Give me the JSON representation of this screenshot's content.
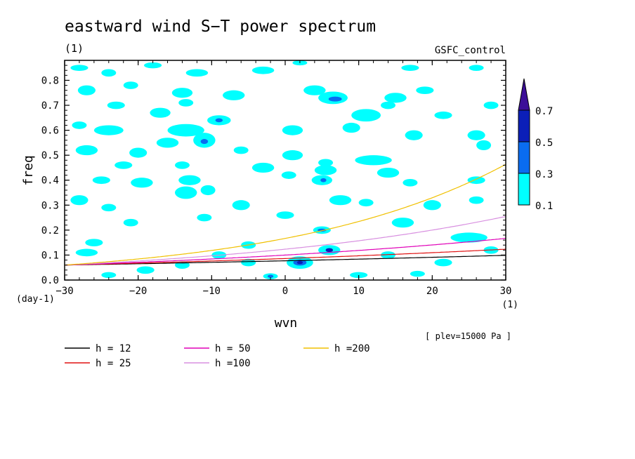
{
  "chart_data": {
    "type": "heatmap",
    "title": "eastward wind S−T power spectrum",
    "subtitle_left": "(1)",
    "subtitle_right": "GSFC_control",
    "xlabel": "wvn",
    "ylabel": "freq",
    "x_unit": "(1)",
    "y_unit": "(day-1)",
    "xlim": [
      -30,
      30
    ],
    "ylim": [
      0,
      0.88
    ],
    "x_ticks": [
      -30,
      -20,
      -10,
      0,
      10,
      20,
      30
    ],
    "x_tick_labels": [
      "−30",
      "−20",
      "−10",
      "0",
      "10",
      "20",
      "30"
    ],
    "y_ticks": [
      0.0,
      0.1,
      0.2,
      0.3,
      0.4,
      0.5,
      0.6,
      0.7,
      0.8
    ],
    "y_tick_labels": [
      "0.0",
      "0.1",
      "0.2",
      "0.3",
      "0.4",
      "0.5",
      "0.6",
      "0.7",
      "0.8"
    ],
    "note": "[ plev=15000 Pa ]",
    "colorbar": {
      "levels": [
        "0.1",
        "0.3",
        "0.5",
        "0.7"
      ],
      "colors": [
        "#00ffff",
        "#0a6cf0",
        "#0b1fb8",
        "#3c0f98"
      ]
    },
    "dispersion_curves": [
      {
        "name": "h = 12",
        "h": 12,
        "color": "#000000"
      },
      {
        "name": "h = 25",
        "h": 25,
        "color": "#e01010"
      },
      {
        "name": "h = 50",
        "h": 50,
        "color": "#e000b8"
      },
      {
        "name": "h =100",
        "h": 100,
        "color": "#d890e0"
      },
      {
        "name": "h =200",
        "h": 200,
        "color": "#f0c000"
      }
    ],
    "blobs": [
      {
        "x": -28,
        "y": 0.85,
        "rx": 1.2,
        "ry": 0.012,
        "level": 0
      },
      {
        "x": -24,
        "y": 0.83,
        "rx": 1.0,
        "ry": 0.015,
        "level": 0
      },
      {
        "x": -18,
        "y": 0.86,
        "rx": 1.2,
        "ry": 0.012,
        "level": 0
      },
      {
        "x": -12,
        "y": 0.83,
        "rx": 1.5,
        "ry": 0.015,
        "level": 0
      },
      {
        "x": -3,
        "y": 0.84,
        "rx": 1.5,
        "ry": 0.015,
        "level": 0
      },
      {
        "x": 2,
        "y": 0.87,
        "rx": 1.0,
        "ry": 0.01,
        "level": 0
      },
      {
        "x": 17,
        "y": 0.85,
        "rx": 1.2,
        "ry": 0.012,
        "level": 0
      },
      {
        "x": 26,
        "y": 0.85,
        "rx": 1.0,
        "ry": 0.012,
        "level": 0
      },
      {
        "x": -27,
        "y": 0.76,
        "rx": 1.2,
        "ry": 0.02,
        "level": 0
      },
      {
        "x": -21,
        "y": 0.78,
        "rx": 1.0,
        "ry": 0.015,
        "level": 0
      },
      {
        "x": -14,
        "y": 0.75,
        "rx": 1.4,
        "ry": 0.02,
        "level": 0
      },
      {
        "x": -7,
        "y": 0.74,
        "rx": 1.5,
        "ry": 0.02,
        "level": 0
      },
      {
        "x": 4,
        "y": 0.76,
        "rx": 1.5,
        "ry": 0.02,
        "level": 0
      },
      {
        "x": 6.5,
        "y": 0.73,
        "rx": 2.0,
        "ry": 0.025,
        "level": 0
      },
      {
        "x": 6.8,
        "y": 0.725,
        "rx": 0.9,
        "ry": 0.01,
        "level": 1
      },
      {
        "x": 15,
        "y": 0.73,
        "rx": 1.5,
        "ry": 0.02,
        "level": 0
      },
      {
        "x": 19,
        "y": 0.76,
        "rx": 1.2,
        "ry": 0.015,
        "level": 0
      },
      {
        "x": -23,
        "y": 0.7,
        "rx": 1.2,
        "ry": 0.015,
        "level": 0
      },
      {
        "x": -13.5,
        "y": 0.71,
        "rx": 1.0,
        "ry": 0.015,
        "level": 0
      },
      {
        "x": -17,
        "y": 0.67,
        "rx": 1.4,
        "ry": 0.02,
        "level": 0
      },
      {
        "x": -9,
        "y": 0.64,
        "rx": 1.6,
        "ry": 0.02,
        "level": 0
      },
      {
        "x": -9,
        "y": 0.64,
        "rx": 0.5,
        "ry": 0.008,
        "level": 1
      },
      {
        "x": 11,
        "y": 0.66,
        "rx": 2.0,
        "ry": 0.025,
        "level": 0
      },
      {
        "x": 14,
        "y": 0.7,
        "rx": 1.0,
        "ry": 0.015,
        "level": 0
      },
      {
        "x": 21.5,
        "y": 0.66,
        "rx": 1.2,
        "ry": 0.015,
        "level": 0
      },
      {
        "x": -28,
        "y": 0.62,
        "rx": 1.0,
        "ry": 0.015,
        "level": 0
      },
      {
        "x": -24,
        "y": 0.6,
        "rx": 2.0,
        "ry": 0.02,
        "level": 0
      },
      {
        "x": -13.5,
        "y": 0.6,
        "rx": 2.5,
        "ry": 0.025,
        "level": 0
      },
      {
        "x": -16,
        "y": 0.55,
        "rx": 1.5,
        "ry": 0.02,
        "level": 0
      },
      {
        "x": -11,
        "y": 0.56,
        "rx": 1.5,
        "ry": 0.03,
        "level": 0
      },
      {
        "x": -11,
        "y": 0.555,
        "rx": 0.5,
        "ry": 0.01,
        "level": 1
      },
      {
        "x": 1,
        "y": 0.6,
        "rx": 1.4,
        "ry": 0.02,
        "level": 0
      },
      {
        "x": 9,
        "y": 0.61,
        "rx": 1.2,
        "ry": 0.02,
        "level": 0
      },
      {
        "x": 17.5,
        "y": 0.58,
        "rx": 1.2,
        "ry": 0.02,
        "level": 0
      },
      {
        "x": 26,
        "y": 0.58,
        "rx": 1.2,
        "ry": 0.02,
        "level": 0
      },
      {
        "x": -27,
        "y": 0.52,
        "rx": 1.5,
        "ry": 0.02,
        "level": 0
      },
      {
        "x": -20,
        "y": 0.51,
        "rx": 1.2,
        "ry": 0.02,
        "level": 0
      },
      {
        "x": -6,
        "y": 0.52,
        "rx": 1.0,
        "ry": 0.015,
        "level": 0
      },
      {
        "x": 1,
        "y": 0.5,
        "rx": 1.4,
        "ry": 0.02,
        "level": 0
      },
      {
        "x": 12,
        "y": 0.48,
        "rx": 2.5,
        "ry": 0.02,
        "level": 0
      },
      {
        "x": 27,
        "y": 0.54,
        "rx": 1.0,
        "ry": 0.02,
        "level": 0
      },
      {
        "x": -22,
        "y": 0.46,
        "rx": 1.2,
        "ry": 0.015,
        "level": 0
      },
      {
        "x": -14,
        "y": 0.46,
        "rx": 1.0,
        "ry": 0.015,
        "level": 0
      },
      {
        "x": -3,
        "y": 0.45,
        "rx": 1.5,
        "ry": 0.02,
        "level": 0
      },
      {
        "x": 5.5,
        "y": 0.47,
        "rx": 1.0,
        "ry": 0.015,
        "level": 0
      },
      {
        "x": 5.5,
        "y": 0.44,
        "rx": 1.5,
        "ry": 0.02,
        "level": 0
      },
      {
        "x": 14,
        "y": 0.43,
        "rx": 1.5,
        "ry": 0.02,
        "level": 0
      },
      {
        "x": -25,
        "y": 0.4,
        "rx": 1.2,
        "ry": 0.015,
        "level": 0
      },
      {
        "x": -19.5,
        "y": 0.39,
        "rx": 1.5,
        "ry": 0.02,
        "level": 0
      },
      {
        "x": -13,
        "y": 0.4,
        "rx": 1.5,
        "ry": 0.02,
        "level": 0
      },
      {
        "x": 0.5,
        "y": 0.42,
        "rx": 1.0,
        "ry": 0.015,
        "level": 0
      },
      {
        "x": 5,
        "y": 0.4,
        "rx": 1.4,
        "ry": 0.02,
        "level": 0
      },
      {
        "x": 5.2,
        "y": 0.4,
        "rx": 0.4,
        "ry": 0.008,
        "level": 1
      },
      {
        "x": 17,
        "y": 0.39,
        "rx": 1.0,
        "ry": 0.015,
        "level": 0
      },
      {
        "x": 26,
        "y": 0.4,
        "rx": 1.2,
        "ry": 0.015,
        "level": 0
      },
      {
        "x": -13.5,
        "y": 0.35,
        "rx": 1.5,
        "ry": 0.025,
        "level": 0
      },
      {
        "x": -10.5,
        "y": 0.36,
        "rx": 1.0,
        "ry": 0.02,
        "level": 0
      },
      {
        "x": -28,
        "y": 0.32,
        "rx": 1.2,
        "ry": 0.02,
        "level": 0
      },
      {
        "x": -24,
        "y": 0.29,
        "rx": 1.0,
        "ry": 0.015,
        "level": 0
      },
      {
        "x": -6,
        "y": 0.3,
        "rx": 1.2,
        "ry": 0.02,
        "level": 0
      },
      {
        "x": 7.5,
        "y": 0.32,
        "rx": 1.5,
        "ry": 0.02,
        "level": 0
      },
      {
        "x": 11,
        "y": 0.31,
        "rx": 1.0,
        "ry": 0.015,
        "level": 0
      },
      {
        "x": 20,
        "y": 0.3,
        "rx": 1.2,
        "ry": 0.02,
        "level": 0
      },
      {
        "x": 26,
        "y": 0.32,
        "rx": 1.0,
        "ry": 0.015,
        "level": 0
      },
      {
        "x": -21,
        "y": 0.23,
        "rx": 1.0,
        "ry": 0.015,
        "level": 0
      },
      {
        "x": -11,
        "y": 0.25,
        "rx": 1.0,
        "ry": 0.015,
        "level": 0
      },
      {
        "x": 0,
        "y": 0.26,
        "rx": 1.2,
        "ry": 0.015,
        "level": 0
      },
      {
        "x": 5,
        "y": 0.2,
        "rx": 1.2,
        "ry": 0.015,
        "level": 0
      },
      {
        "x": 5,
        "y": 0.2,
        "rx": 0.6,
        "ry": 0.006,
        "level": 1
      },
      {
        "x": 16,
        "y": 0.23,
        "rx": 1.5,
        "ry": 0.02,
        "level": 0
      },
      {
        "x": 25,
        "y": 0.17,
        "rx": 2.5,
        "ry": 0.02,
        "level": 0
      },
      {
        "x": -26,
        "y": 0.15,
        "rx": 1.2,
        "ry": 0.015,
        "level": 0
      },
      {
        "x": -5,
        "y": 0.14,
        "rx": 1.0,
        "ry": 0.015,
        "level": 0
      },
      {
        "x": -27,
        "y": 0.11,
        "rx": 1.5,
        "ry": 0.015,
        "level": 0
      },
      {
        "x": -9,
        "y": 0.1,
        "rx": 1.0,
        "ry": 0.015,
        "level": 0
      },
      {
        "x": 6,
        "y": 0.12,
        "rx": 1.5,
        "ry": 0.02,
        "level": 0
      },
      {
        "x": 6,
        "y": 0.12,
        "rx": 0.5,
        "ry": 0.008,
        "level": 2
      },
      {
        "x": 14,
        "y": 0.1,
        "rx": 1.0,
        "ry": 0.015,
        "level": 0
      },
      {
        "x": 2,
        "y": 0.07,
        "rx": 1.8,
        "ry": 0.025,
        "level": 0
      },
      {
        "x": 2,
        "y": 0.07,
        "rx": 0.9,
        "ry": 0.012,
        "level": 1
      },
      {
        "x": 2,
        "y": 0.07,
        "rx": 0.4,
        "ry": 0.006,
        "level": 2
      },
      {
        "x": -5,
        "y": 0.07,
        "rx": 1.0,
        "ry": 0.015,
        "level": 0
      },
      {
        "x": -19,
        "y": 0.04,
        "rx": 1.2,
        "ry": 0.015,
        "level": 0
      },
      {
        "x": -14,
        "y": 0.06,
        "rx": 1.0,
        "ry": 0.015,
        "level": 0
      },
      {
        "x": 21.5,
        "y": 0.07,
        "rx": 1.2,
        "ry": 0.015,
        "level": 0
      },
      {
        "x": -2,
        "y": 0.015,
        "rx": 1.0,
        "ry": 0.012,
        "level": 0
      },
      {
        "x": -2,
        "y": 0.015,
        "rx": 0.4,
        "ry": 0.006,
        "level": 1
      },
      {
        "x": -24,
        "y": 0.02,
        "rx": 1.0,
        "ry": 0.012,
        "level": 0
      },
      {
        "x": 10,
        "y": 0.02,
        "rx": 1.2,
        "ry": 0.012,
        "level": 0
      },
      {
        "x": 18,
        "y": 0.025,
        "rx": 1.0,
        "ry": 0.012,
        "level": 0
      },
      {
        "x": 28,
        "y": 0.12,
        "rx": 1.0,
        "ry": 0.015,
        "level": 0
      },
      {
        "x": 28,
        "y": 0.7,
        "rx": 1.0,
        "ry": 0.015,
        "level": 0
      }
    ]
  }
}
